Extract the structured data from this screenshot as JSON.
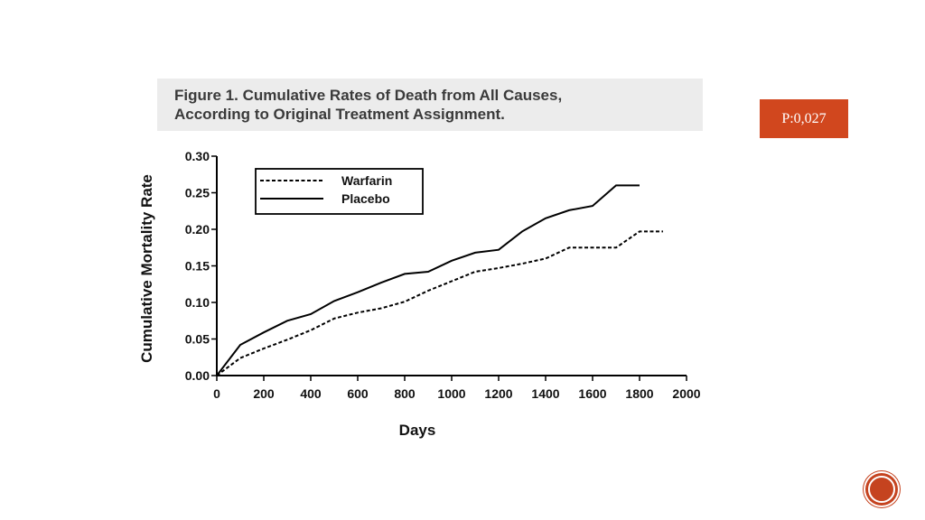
{
  "figure": {
    "caption_line1": "Figure 1. Cumulative Rates of Death from All Causes,",
    "caption_line2": "According to Original Treatment Assignment."
  },
  "badge": {
    "text": "P:0,027",
    "color": "#d1471e"
  },
  "chart_data": {
    "type": "line",
    "xlabel": "Days",
    "ylabel": "Cumulative Mortality Rate",
    "xlim": [
      0,
      2000
    ],
    "ylim": [
      0,
      0.3
    ],
    "xticks": [
      "0",
      "200",
      "400",
      "600",
      "800",
      "1000",
      "1200",
      "1400",
      "1600",
      "1800",
      "2000"
    ],
    "yticks": [
      "0.00",
      "0.05",
      "0.10",
      "0.15",
      "0.20",
      "0.25",
      "0.30"
    ],
    "grid": false,
    "legend_position": "top-left",
    "series": [
      {
        "name": "Warfarin",
        "style": "dashed",
        "x": [
          0,
          100,
          200,
          300,
          400,
          500,
          600,
          700,
          800,
          900,
          1000,
          1100,
          1200,
          1300,
          1400,
          1500,
          1600,
          1700,
          1800,
          1900
        ],
        "y": [
          0,
          0.024,
          0.037,
          0.049,
          0.062,
          0.078,
          0.086,
          0.092,
          0.101,
          0.116,
          0.129,
          0.142,
          0.147,
          0.153,
          0.16,
          0.175,
          0.175,
          0.175,
          0.197,
          0.197
        ]
      },
      {
        "name": "Placebo",
        "style": "solid",
        "x": [
          0,
          100,
          200,
          300,
          400,
          500,
          600,
          700,
          800,
          900,
          1000,
          1100,
          1200,
          1300,
          1400,
          1500,
          1600,
          1700,
          1800
        ],
        "y": [
          0,
          0.042,
          0.059,
          0.075,
          0.084,
          0.102,
          0.114,
          0.127,
          0.139,
          0.142,
          0.157,
          0.168,
          0.172,
          0.197,
          0.215,
          0.226,
          0.232,
          0.26,
          0.26
        ]
      }
    ]
  }
}
